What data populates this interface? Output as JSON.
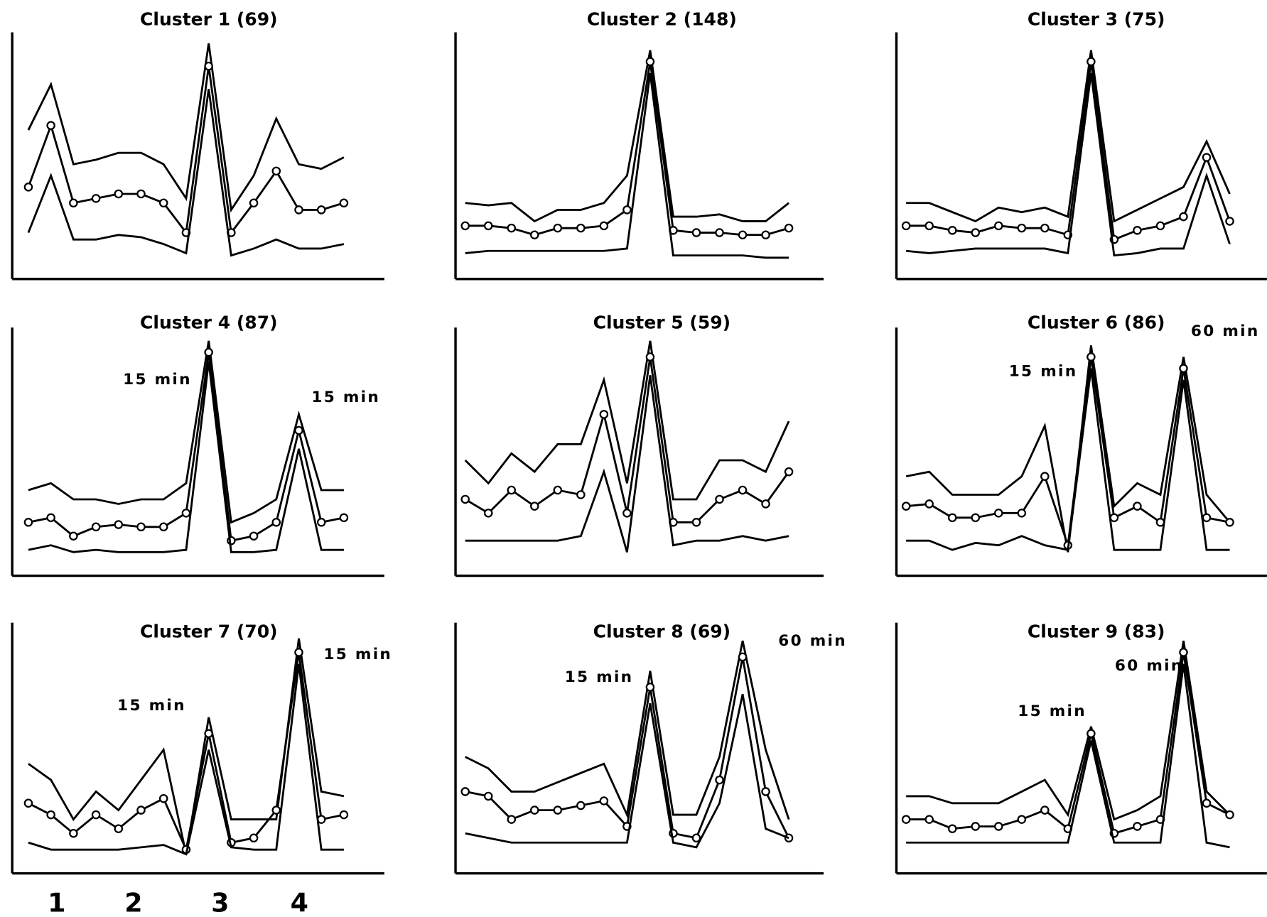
{
  "chart_data": [
    {
      "type": "line",
      "title": "Cluster 1 (69)",
      "x": [
        0,
        1,
        2,
        3,
        4,
        5,
        6,
        7,
        8,
        9,
        10,
        11,
        12,
        13,
        14
      ],
      "xlim": [
        0,
        14
      ],
      "ylim": [
        0,
        100
      ],
      "series": [
        {
          "color": "#000000",
          "values": [
            60,
            80,
            45,
            47,
            50,
            50,
            45,
            30,
            98,
            25,
            40,
            65,
            45,
            43,
            48
          ]
        },
        {
          "color": "#000000",
          "marker": "circle",
          "values": [
            35,
            62,
            28,
            30,
            32,
            32,
            28,
            15,
            88,
            15,
            28,
            42,
            25,
            25,
            28
          ]
        },
        {
          "color": "#000000",
          "values": [
            15,
            40,
            12,
            12,
            14,
            13,
            10,
            6,
            78,
            5,
            8,
            12,
            8,
            8,
            10
          ]
        }
      ]
    },
    {
      "type": "line",
      "title": "Cluster 2 (148)",
      "x": [
        0,
        1,
        2,
        3,
        4,
        5,
        6,
        7,
        8,
        9,
        10,
        11,
        12,
        13,
        14
      ],
      "xlim": [
        0,
        14
      ],
      "ylim": [
        0,
        100
      ],
      "series": [
        {
          "color": "#000000",
          "values": [
            28,
            27,
            28,
            20,
            25,
            25,
            28,
            40,
            95,
            22,
            22,
            23,
            20,
            20,
            28
          ]
        },
        {
          "color": "#000000",
          "marker": "circle",
          "values": [
            18,
            18,
            17,
            14,
            17,
            17,
            18,
            25,
            90,
            16,
            15,
            15,
            14,
            14,
            17
          ]
        },
        {
          "color": "#000000",
          "values": [
            6,
            7,
            7,
            7,
            7,
            7,
            7,
            8,
            85,
            5,
            5,
            5,
            5,
            4,
            4
          ]
        }
      ]
    },
    {
      "type": "line",
      "title": "Cluster 3 (75)",
      "x": [
        0,
        1,
        2,
        3,
        4,
        5,
        6,
        7,
        8,
        9,
        10,
        11,
        12,
        13,
        14
      ],
      "xlim": [
        0,
        14
      ],
      "ylim": [
        0,
        100
      ],
      "series": [
        {
          "color": "#000000",
          "values": [
            28,
            28,
            24,
            20,
            26,
            24,
            26,
            22,
            95,
            20,
            25,
            30,
            35,
            55,
            32
          ]
        },
        {
          "color": "#000000",
          "marker": "circle",
          "values": [
            18,
            18,
            16,
            15,
            18,
            17,
            17,
            14,
            90,
            12,
            16,
            18,
            22,
            48,
            20
          ]
        },
        {
          "color": "#000000",
          "values": [
            7,
            6,
            7,
            8,
            8,
            8,
            8,
            6,
            85,
            5,
            6,
            8,
            8,
            40,
            10
          ]
        }
      ]
    },
    {
      "type": "line",
      "title": "Cluster 4 (87)",
      "annotations": [
        "15 min",
        "15 min"
      ],
      "x": [
        0,
        1,
        2,
        3,
        4,
        5,
        6,
        7,
        8,
        9,
        10,
        11,
        12,
        13,
        14
      ],
      "xlim": [
        0,
        14
      ],
      "ylim": [
        0,
        100
      ],
      "series": [
        {
          "color": "#000000",
          "values": [
            32,
            35,
            28,
            28,
            26,
            28,
            28,
            35,
            97,
            18,
            22,
            28,
            65,
            32,
            32
          ]
        },
        {
          "color": "#000000",
          "marker": "circle",
          "values": [
            18,
            20,
            12,
            16,
            17,
            16,
            16,
            22,
            92,
            10,
            12,
            18,
            58,
            18,
            20
          ]
        },
        {
          "color": "#000000",
          "values": [
            6,
            8,
            5,
            6,
            5,
            5,
            5,
            6,
            88,
            5,
            5,
            6,
            50,
            6,
            6
          ]
        }
      ]
    },
    {
      "type": "line",
      "title": "Cluster 5 (59)",
      "x": [
        0,
        1,
        2,
        3,
        4,
        5,
        6,
        7,
        8,
        9,
        10,
        11,
        12,
        13,
        14
      ],
      "xlim": [
        0,
        14
      ],
      "ylim": [
        0,
        100
      ],
      "series": [
        {
          "color": "#000000",
          "values": [
            45,
            35,
            48,
            40,
            52,
            52,
            80,
            35,
            97,
            28,
            28,
            45,
            45,
            40,
            62
          ]
        },
        {
          "color": "#000000",
          "marker": "circle",
          "values": [
            28,
            22,
            32,
            25,
            32,
            30,
            65,
            22,
            90,
            18,
            18,
            28,
            32,
            26,
            40
          ]
        },
        {
          "color": "#000000",
          "values": [
            10,
            10,
            10,
            10,
            10,
            12,
            40,
            5,
            82,
            8,
            10,
            10,
            12,
            10,
            12
          ]
        }
      ]
    },
    {
      "type": "line",
      "title": "Cluster 6 (86)",
      "annotations": [
        "15 min",
        "60 min"
      ],
      "x": [
        0,
        1,
        2,
        3,
        4,
        5,
        6,
        7,
        8,
        9,
        10,
        11,
        12,
        13,
        14
      ],
      "xlim": [
        0,
        14
      ],
      "ylim": [
        0,
        100
      ],
      "series": [
        {
          "color": "#000000",
          "values": [
            38,
            40,
            30,
            30,
            30,
            38,
            60,
            5,
            95,
            25,
            35,
            30,
            90,
            30,
            18
          ]
        },
        {
          "color": "#000000",
          "marker": "circle",
          "values": [
            25,
            26,
            20,
            20,
            22,
            22,
            38,
            8,
            90,
            20,
            25,
            18,
            85,
            20,
            18
          ]
        },
        {
          "color": "#000000",
          "values": [
            10,
            10,
            6,
            9,
            8,
            12,
            8,
            6,
            85,
            6,
            6,
            6,
            80,
            6,
            6
          ]
        }
      ]
    },
    {
      "type": "line",
      "title": "Cluster 7 (70)",
      "annotations": [
        "15 min",
        "15 min"
      ],
      "x": [
        0,
        1,
        2,
        3,
        4,
        5,
        6,
        7,
        8,
        9,
        10,
        11,
        12,
        13,
        14
      ],
      "xlim": [
        0,
        14
      ],
      "ylim": [
        0,
        100
      ],
      "series": [
        {
          "color": "#000000",
          "values": [
            42,
            35,
            18,
            30,
            22,
            35,
            48,
            3,
            62,
            18,
            18,
            18,
            96,
            30,
            28
          ]
        },
        {
          "color": "#000000",
          "marker": "circle",
          "values": [
            25,
            20,
            12,
            20,
            14,
            22,
            27,
            5,
            55,
            8,
            10,
            22,
            90,
            18,
            20
          ]
        },
        {
          "color": "#000000",
          "values": [
            8,
            5,
            5,
            5,
            5,
            6,
            7,
            3,
            48,
            6,
            5,
            5,
            85,
            5,
            5
          ]
        }
      ]
    },
    {
      "type": "line",
      "title": "Cluster 8 (69)",
      "annotations": [
        "15 min",
        "60 min"
      ],
      "x": [
        0,
        1,
        2,
        3,
        4,
        5,
        6,
        7,
        8,
        9,
        10,
        11,
        12,
        13,
        14
      ],
      "xlim": [
        0,
        14
      ],
      "ylim": [
        0,
        100
      ],
      "series": [
        {
          "color": "#000000",
          "values": [
            45,
            40,
            30,
            30,
            34,
            38,
            42,
            20,
            82,
            20,
            20,
            45,
            95,
            48,
            18
          ]
        },
        {
          "color": "#000000",
          "marker": "circle",
          "values": [
            30,
            28,
            18,
            22,
            22,
            24,
            26,
            15,
            75,
            12,
            10,
            35,
            88,
            30,
            10
          ]
        },
        {
          "color": "#000000",
          "values": [
            12,
            10,
            8,
            8,
            8,
            8,
            8,
            8,
            68,
            8,
            6,
            25,
            72,
            14,
            10
          ]
        }
      ]
    },
    {
      "type": "line",
      "title": "Cluster 9 (83)",
      "annotations": [
        "15 min",
        "60 min"
      ],
      "x": [
        0,
        1,
        2,
        3,
        4,
        5,
        6,
        7,
        8,
        9,
        10,
        11,
        12,
        13,
        14
      ],
      "xlim": [
        0,
        14
      ],
      "ylim": [
        0,
        100
      ],
      "series": [
        {
          "color": "#000000",
          "values": [
            28,
            28,
            25,
            25,
            25,
            30,
            35,
            20,
            58,
            18,
            22,
            28,
            95,
            30,
            20
          ]
        },
        {
          "color": "#000000",
          "marker": "circle",
          "values": [
            18,
            18,
            14,
            15,
            15,
            18,
            22,
            14,
            55,
            12,
            15,
            18,
            90,
            25,
            20
          ]
        },
        {
          "color": "#000000",
          "values": [
            8,
            8,
            8,
            8,
            8,
            8,
            8,
            8,
            52,
            8,
            8,
            8,
            85,
            8,
            6
          ]
        }
      ]
    }
  ],
  "x_labels": [
    "1",
    "2",
    "3",
    "4"
  ]
}
